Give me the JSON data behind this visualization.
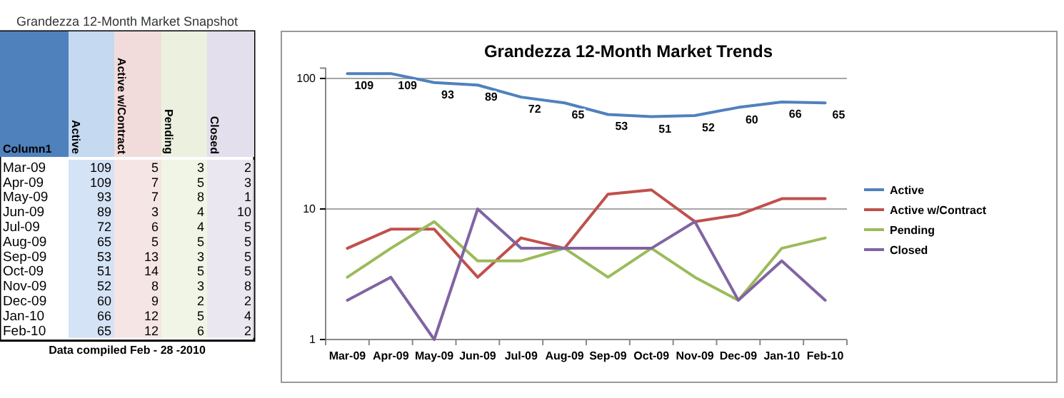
{
  "chart_data": [
    {
      "type": "other",
      "title": "Grandezza 12-Month Market Snapshot",
      "categories": [
        "Mar-09",
        "Apr-09",
        "May-09",
        "Jun-09",
        "Jul-09",
        "Aug-09",
        "Sep-09",
        "Oct-09",
        "Nov-09",
        "Dec-09",
        "Jan-10",
        "Feb-10"
      ],
      "series": [
        {
          "name": "Active",
          "color": "#c5d9f1",
          "values": [
            109,
            109,
            93,
            89,
            72,
            65,
            53,
            51,
            52,
            60,
            66,
            65
          ]
        },
        {
          "name": "Active w/Contract",
          "color": "#f2dcdb",
          "values": [
            5,
            7,
            7,
            3,
            6,
            5,
            13,
            14,
            8,
            9,
            12,
            12
          ]
        },
        {
          "name": "Pending",
          "color": "#ebf1de",
          "values": [
            3,
            5,
            8,
            4,
            4,
            5,
            3,
            5,
            3,
            2,
            5,
            6
          ]
        },
        {
          "name": "Closed",
          "color": "#e4dfec",
          "values": [
            2,
            3,
            1,
            10,
            5,
            5,
            5,
            5,
            8,
            2,
            4,
            2
          ]
        }
      ],
      "data_labels": true,
      "annotations": [
        "Column1",
        "Data compiled Feb - 28 -2010"
      ]
    },
    {
      "type": "line",
      "title": "Grandezza 12-Month Market Trends",
      "categories": [
        "Mar-09",
        "Apr-09",
        "May-09",
        "Jun-09",
        "Jul-09",
        "Aug-09",
        "Sep-09",
        "Oct-09",
        "Nov-09",
        "Dec-09",
        "Jan-10",
        "Feb-10"
      ],
      "series": [
        {
          "name": "Active",
          "color": "#4f81bd",
          "values": [
            109,
            109,
            93,
            89,
            72,
            65,
            53,
            51,
            52,
            60,
            66,
            65
          ],
          "value_labels": [
            "109",
            "109",
            "93",
            "89",
            "72",
            "65",
            "53",
            "51",
            "52",
            "60",
            "66",
            "65"
          ]
        },
        {
          "name": "Active w/Contract",
          "color": "#c0504d",
          "values": [
            5,
            7,
            7,
            3,
            6,
            5,
            13,
            14,
            8,
            9,
            12,
            12
          ]
        },
        {
          "name": "Pending",
          "color": "#9bbb59",
          "values": [
            3,
            5,
            8,
            4,
            4,
            5,
            3,
            5,
            3,
            2,
            5,
            6
          ]
        },
        {
          "name": "Closed",
          "color": "#8064a2",
          "values": [
            2,
            3,
            1,
            10,
            5,
            5,
            5,
            5,
            8,
            2,
            4,
            2
          ]
        }
      ],
      "log": true,
      "ylim": [
        1,
        120
      ],
      "yticks": [
        1,
        10,
        100
      ],
      "grid": "y",
      "legend": "right",
      "line_style": "solid",
      "marker": "none"
    }
  ]
}
